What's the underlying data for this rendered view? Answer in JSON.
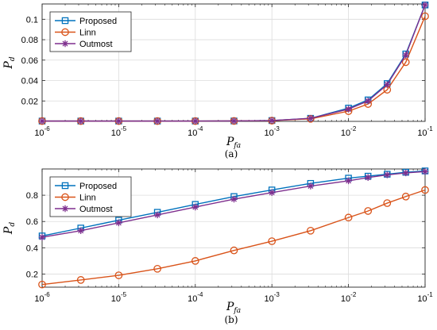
{
  "chart_data": [
    {
      "type": "line",
      "caption": "(a)",
      "xlabel_main": "P",
      "xlabel_sub": "fa",
      "ylabel_main": "P",
      "ylabel_sub": "d",
      "xscale": "log",
      "xlim": [
        1e-06,
        0.1
      ],
      "ylim": [
        0,
        0.115
      ],
      "yticks": [
        0.02,
        0.04,
        0.06,
        0.08,
        0.1
      ],
      "ytick_labels": [
        "0.02",
        "0.04",
        "0.06",
        "0.08",
        "0.1"
      ],
      "grid": true,
      "legend_position": "top-left",
      "x": [
        1e-06,
        3.2e-06,
        1e-05,
        3.2e-05,
        0.0001,
        0.00032,
        0.001,
        0.0032,
        0.01,
        0.018,
        0.032,
        0.056,
        0.1
      ],
      "series": [
        {
          "name": "Proposed",
          "color": "#0072BD",
          "marker": "square",
          "values": [
            0.0003,
            0.0003,
            0.0003,
            0.0003,
            0.0003,
            0.0004,
            0.0008,
            0.003,
            0.013,
            0.021,
            0.037,
            0.066,
            0.114
          ]
        },
        {
          "name": "Linn",
          "color": "#D95319",
          "marker": "circle",
          "values": [
            0.0003,
            0.0003,
            0.0003,
            0.0003,
            0.0003,
            0.0004,
            0.0007,
            0.0025,
            0.01,
            0.017,
            0.031,
            0.058,
            0.103
          ]
        },
        {
          "name": "Outmost",
          "color": "#7E2F8E",
          "marker": "asterisk",
          "values": [
            0.0003,
            0.0003,
            0.0003,
            0.0003,
            0.0003,
            0.0004,
            0.0008,
            0.003,
            0.012,
            0.02,
            0.036,
            0.065,
            0.114
          ]
        }
      ]
    },
    {
      "type": "line",
      "caption": "(b)",
      "xlabel_main": "P",
      "xlabel_sub": "fa",
      "ylabel_main": "P",
      "ylabel_sub": "d",
      "xscale": "log",
      "xlim": [
        1e-06,
        0.1
      ],
      "ylim": [
        0.1,
        1
      ],
      "yticks": [
        0.2,
        0.4,
        0.6,
        0.8
      ],
      "ytick_labels": [
        "0.2",
        "0.4",
        "0.6",
        "0.8"
      ],
      "grid": true,
      "legend_position": "top-left",
      "x": [
        1e-06,
        3.2e-06,
        1e-05,
        3.2e-05,
        0.0001,
        0.00032,
        0.001,
        0.0032,
        0.01,
        0.018,
        0.032,
        0.056,
        0.1
      ],
      "series": [
        {
          "name": "Proposed",
          "color": "#0072BD",
          "marker": "square",
          "values": [
            0.49,
            0.55,
            0.61,
            0.67,
            0.73,
            0.79,
            0.84,
            0.89,
            0.93,
            0.945,
            0.96,
            0.975,
            0.985
          ]
        },
        {
          "name": "Linn",
          "color": "#D95319",
          "marker": "circle",
          "values": [
            0.12,
            0.155,
            0.19,
            0.24,
            0.3,
            0.38,
            0.45,
            0.53,
            0.63,
            0.68,
            0.74,
            0.79,
            0.84
          ]
        },
        {
          "name": "Outmost",
          "color": "#7E2F8E",
          "marker": "asterisk",
          "values": [
            0.48,
            0.53,
            0.59,
            0.65,
            0.71,
            0.77,
            0.82,
            0.87,
            0.91,
            0.935,
            0.955,
            0.97,
            0.98
          ]
        }
      ]
    }
  ],
  "xtick_exponents": [
    "-6",
    "-5",
    "-4",
    "-3",
    "-2",
    "-1"
  ],
  "xtick_base": "10"
}
